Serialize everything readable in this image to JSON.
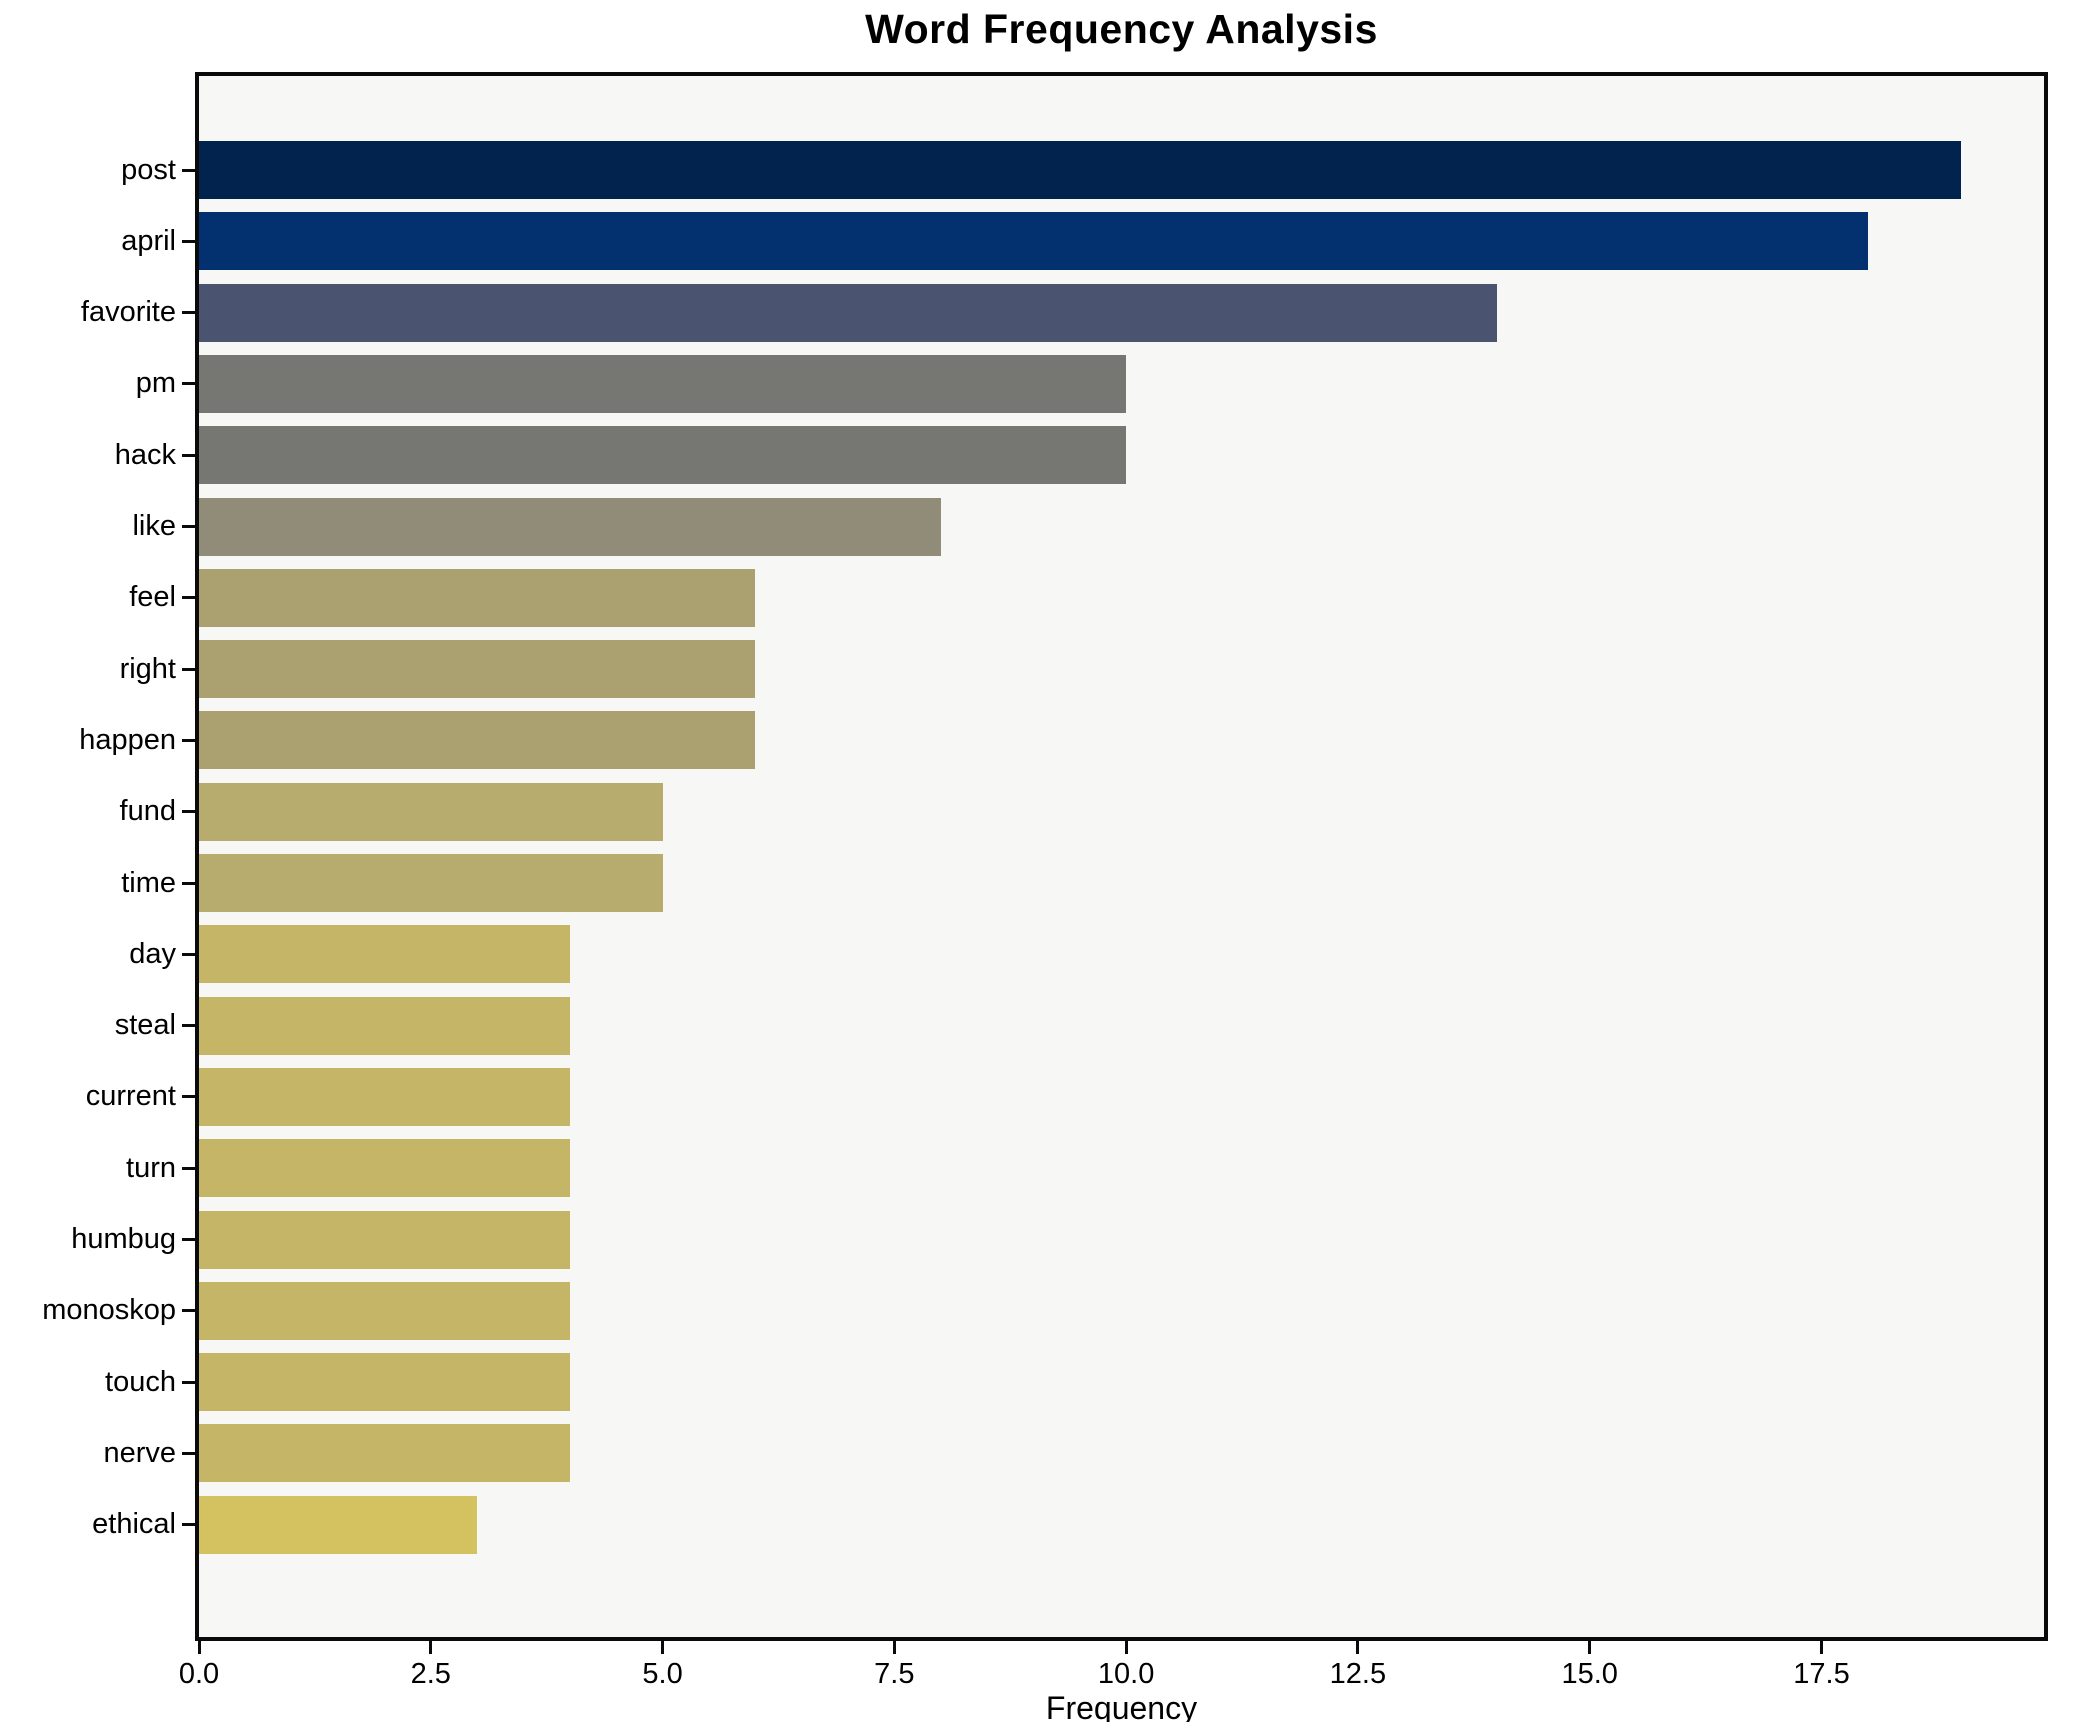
{
  "chart_data": {
    "type": "bar",
    "orientation": "horizontal",
    "title": "Word Frequency Analysis",
    "xlabel": "Frequency",
    "ylabel": "",
    "categories": [
      "post",
      "april",
      "favorite",
      "pm",
      "hack",
      "like",
      "feel",
      "right",
      "happen",
      "fund",
      "time",
      "day",
      "steal",
      "current",
      "turn",
      "humbug",
      "monoskop",
      "touch",
      "nerve",
      "ethical"
    ],
    "values": [
      19,
      18,
      14,
      10,
      10,
      8,
      6,
      6,
      6,
      5,
      5,
      4,
      4,
      4,
      4,
      4,
      4,
      4,
      4,
      3
    ],
    "bar_colors": [
      "#02234d",
      "#03306e",
      "#4a5470",
      "#767673",
      "#767673",
      "#908c77",
      "#aba06f",
      "#aba06f",
      "#aba06f",
      "#b8ab6e",
      "#b8ab6e",
      "#c4b567",
      "#c4b567",
      "#c4b567",
      "#c4b567",
      "#c4b567",
      "#c4b567",
      "#c4b567",
      "#c4b567",
      "#d3c25f"
    ],
    "xlim": [
      0,
      19.9
    ],
    "xticks": [
      0.0,
      2.5,
      5.0,
      7.5,
      10.0,
      12.5,
      15.0,
      17.5
    ],
    "grid": false,
    "legend": false,
    "plot_background": "#f7f7f6",
    "figure_background": "#ffffff",
    "spine_color": "#0a0a0a"
  }
}
